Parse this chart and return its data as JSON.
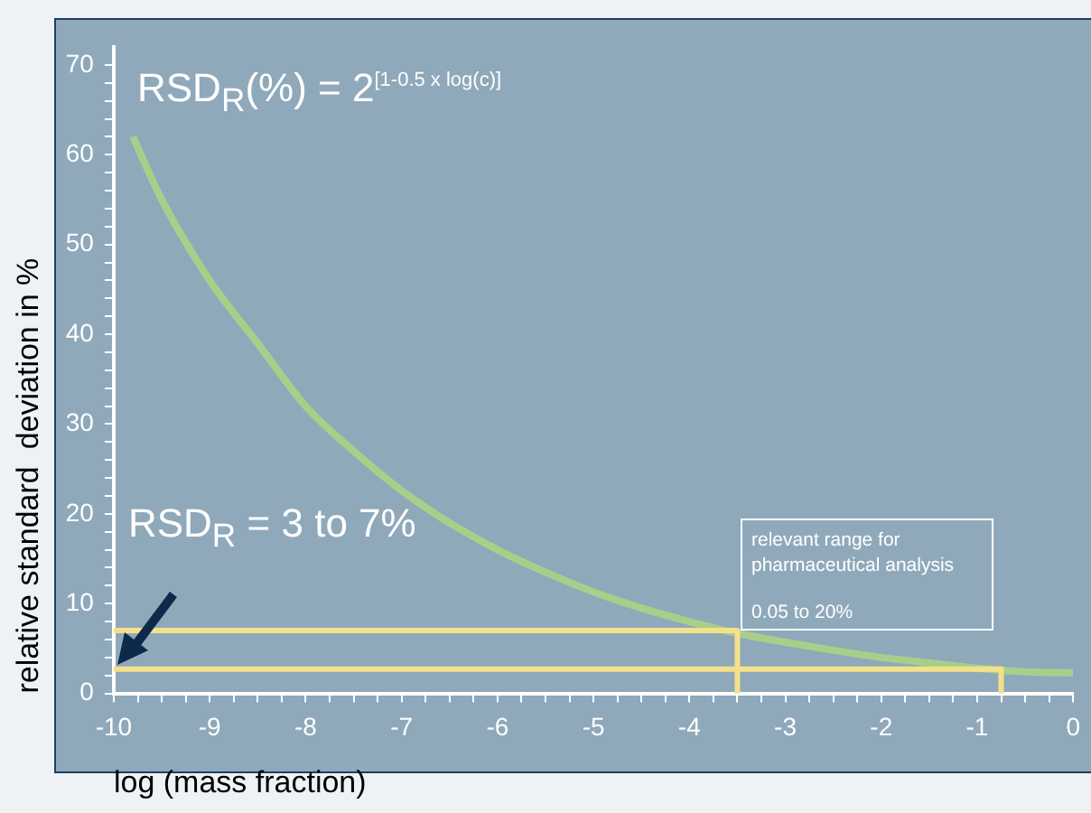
{
  "chart_data": {
    "type": "line",
    "xlabel": "log (mass fraction)",
    "ylabel": "relative standard  deviation in %",
    "x": [
      -9.8,
      -9.5,
      -9,
      -8.5,
      -8,
      -7.5,
      -7,
      -6.5,
      -6,
      -5.5,
      -5,
      -4.5,
      -4,
      -3.5,
      -3,
      -2.5,
      -2,
      -1.5,
      -1,
      -0.5,
      0
    ],
    "series": [
      {
        "color": "#a8cf8a",
        "values": [
          62,
          55,
          46,
          39,
          32,
          27,
          22.6,
          19,
          16,
          13.5,
          11.3,
          9.5,
          8,
          6.7,
          5.7,
          4.8,
          4,
          3.4,
          2.8,
          2.4,
          2.3
        ]
      },
      {
        "type": "line",
        "color": "#f5e08a",
        "x": [
          -10,
          -3.5,
          -3.5
        ],
        "values": [
          7,
          7,
          0
        ]
      },
      {
        "type": "line",
        "color": "#f5e08a",
        "x": [
          -10,
          -0.75,
          -0.75
        ],
        "values": [
          2.7,
          2.7,
          0
        ]
      }
    ],
    "xlim": [
      -10,
      0
    ],
    "ylim": [
      0,
      72
    ],
    "xticks": [
      -10,
      {
        "value": -9.75,
        "label": null
      },
      {
        "value": -9.5,
        "label": null
      },
      {
        "value": -9.25,
        "label": null
      },
      -9,
      {
        "value": -8.75,
        "label": null
      },
      {
        "value": -8.5,
        "label": null
      },
      {
        "value": -8.25,
        "label": null
      },
      -8,
      {
        "value": -7.75,
        "label": null
      },
      {
        "value": -7.5,
        "label": null
      },
      {
        "value": -7.25,
        "label": null
      },
      -7,
      {
        "value": -6.75,
        "label": null
      },
      {
        "value": -6.5,
        "label": null
      },
      {
        "value": -6.25,
        "label": null
      },
      -6,
      {
        "value": -5.75,
        "label": null
      },
      {
        "value": -5.5,
        "label": null
      },
      {
        "value": -5.25,
        "label": null
      },
      -5,
      {
        "value": -4.75,
        "label": null
      },
      {
        "value": -4.5,
        "label": null
      },
      {
        "value": -4.25,
        "label": null
      },
      -4,
      {
        "value": -3.75,
        "label": null
      },
      {
        "value": -3.5,
        "label": null
      },
      {
        "value": -3.25,
        "label": null
      },
      -3,
      {
        "value": -2.75,
        "label": null
      },
      {
        "value": -2.5,
        "label": null
      },
      {
        "value": -2.25,
        "label": null
      },
      -2,
      {
        "value": -1.75,
        "label": null
      },
      {
        "value": -1.5,
        "label": null
      },
      {
        "value": -1.25,
        "label": null
      },
      -1,
      {
        "value": -0.75,
        "label": null
      },
      {
        "value": -0.5,
        "label": null
      },
      {
        "value": -0.25,
        "label": null
      },
      0
    ],
    "yticks": [
      0,
      {
        "value": 2,
        "label": null
      },
      {
        "value": 4,
        "label": null
      },
      {
        "value": 6,
        "label": null
      },
      {
        "value": 8,
        "label": null
      },
      10,
      {
        "value": 12,
        "label": null
      },
      {
        "value": 14,
        "label": null
      },
      {
        "value": 16,
        "label": null
      },
      {
        "value": 18,
        "label": null
      },
      20,
      {
        "value": 22,
        "label": null
      },
      {
        "value": 24,
        "label": null
      },
      {
        "value": 26,
        "label": null
      },
      {
        "value": 28,
        "label": null
      },
      30,
      {
        "value": 32,
        "label": null
      },
      {
        "value": 34,
        "label": null
      },
      {
        "value": 36,
        "label": null
      },
      {
        "value": 38,
        "label": null
      },
      40,
      {
        "value": 42,
        "label": null
      },
      {
        "value": 44,
        "label": null
      },
      {
        "value": 46,
        "label": null
      },
      {
        "value": 48,
        "label": null
      },
      50,
      {
        "value": 52,
        "label": null
      },
      {
        "value": 54,
        "label": null
      },
      {
        "value": 56,
        "label": null
      },
      {
        "value": 58,
        "label": null
      },
      60,
      {
        "value": 62,
        "label": null
      },
      {
        "value": 64,
        "label": null
      },
      {
        "value": 66,
        "label": null
      },
      {
        "value": 68,
        "label": null
      },
      70
    ],
    "grid": false,
    "legend": false,
    "marker": "none",
    "line_style": "solid",
    "annotations": [
      "RSD$_{R}$(%) = 2$^{[1-0.5 x log(c)]}$",
      {
        "text": "RSD$_{R}$ = 3 to 7%",
        "x": -10,
        "y": 3
      },
      "relevant range for pharmaceutical analysis",
      "0.05 to 20%"
    ]
  }
}
